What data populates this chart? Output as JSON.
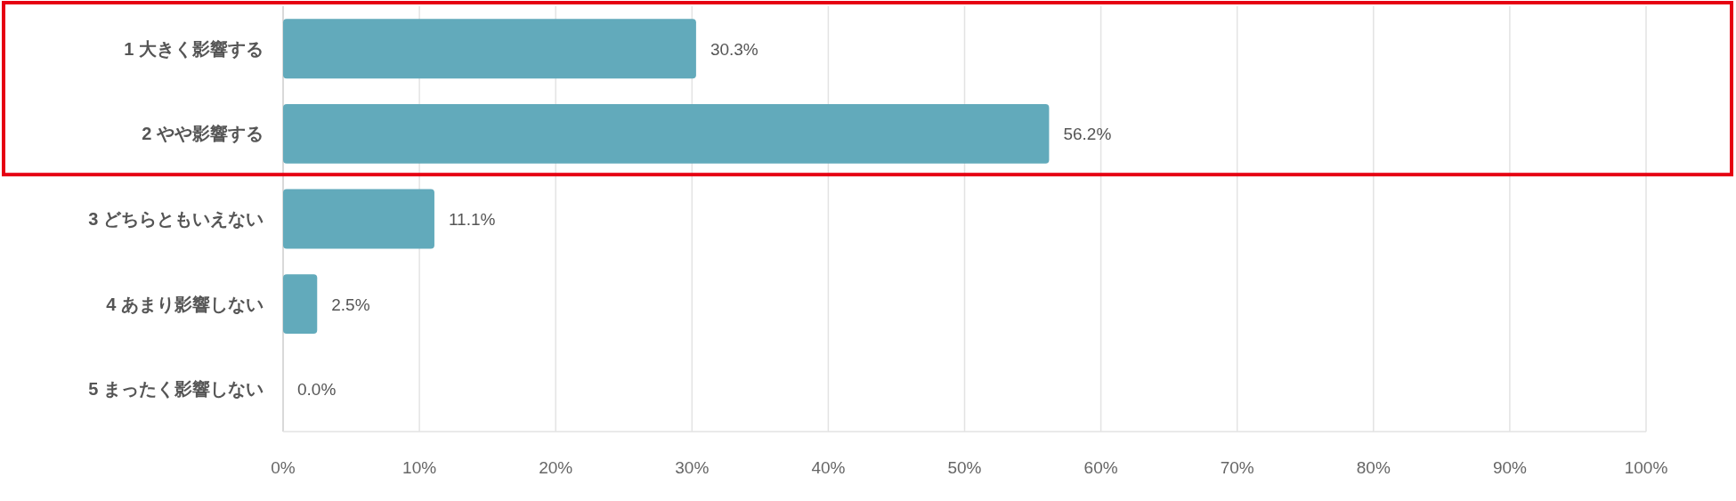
{
  "chart_data": {
    "type": "bar",
    "orientation": "horizontal",
    "categories": [
      "1 大きく影響する",
      "2 やや影響する",
      "3 どちらともいえない",
      "4 あまり影響しない",
      "5 まったく影響しない"
    ],
    "values": [
      30.3,
      56.2,
      11.1,
      2.5,
      0.0
    ],
    "value_labels": [
      "30.3%",
      "56.2%",
      "11.1%",
      "2.5%",
      "0.0%"
    ],
    "color": "#62aabb",
    "xlim": [
      0,
      100
    ],
    "xticks": [
      {
        "value": 0,
        "label": "0%"
      },
      {
        "value": 10,
        "label": "10%"
      },
      {
        "value": 20,
        "label": "20%"
      },
      {
        "value": 30,
        "label": "30%"
      },
      {
        "value": 40,
        "label": "40%"
      },
      {
        "value": 50,
        "label": "50%"
      },
      {
        "value": 60,
        "label": "60%"
      },
      {
        "value": 70,
        "label": "70%"
      },
      {
        "value": 80,
        "label": "80%"
      },
      {
        "value": 90,
        "label": "90%"
      },
      {
        "value": 100,
        "label": "100%"
      }
    ],
    "grid": "x"
  }
}
